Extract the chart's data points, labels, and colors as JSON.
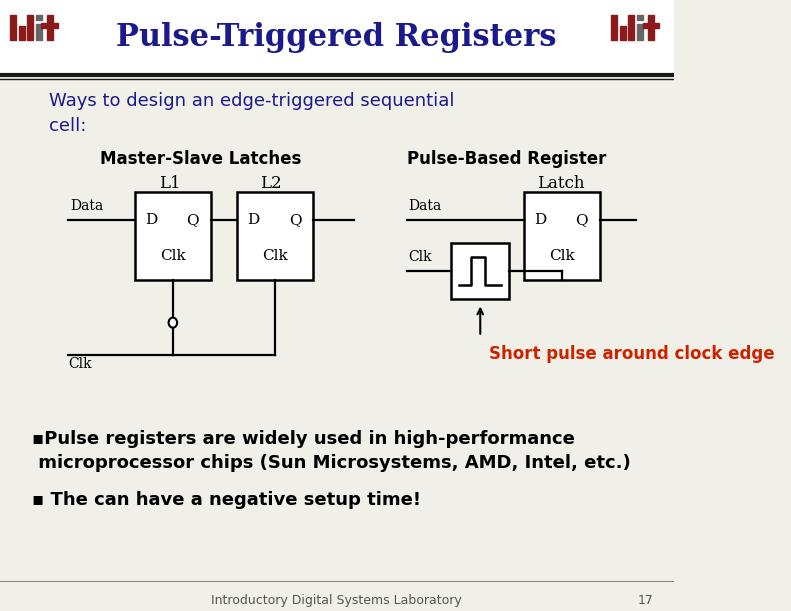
{
  "title": "Pulse-Triggered Registers",
  "title_color": "#1a1a8c",
  "background_color": "#f0f0e8",
  "header_bg": "#ffffff",
  "subtitle": "Ways to design an edge-triggered sequential\ncell:",
  "subtitle_color": "#1a1a8c",
  "label_master_slave": "Master-Slave Latches",
  "label_pulse_based": "Pulse-Based Register",
  "label_l1": "L1",
  "label_l2": "L2",
  "label_latch": "Latch",
  "mit_color": "#8b1a1a",
  "mit_gray": "#666666",
  "bullet_text_1": "▪Pulse registers are widely used in high-performance\n microprocessor chips (Sun Microsystems, AMD, Intel, etc.)",
  "bullet_text_2": "▪ The can have a negative setup time!",
  "short_pulse_text": "Short pulse around clock edge",
  "short_pulse_color": "#cc2200",
  "footer_text": "Introductory Digital Systems Laboratory",
  "footer_page": "17",
  "text_color": "#000000"
}
